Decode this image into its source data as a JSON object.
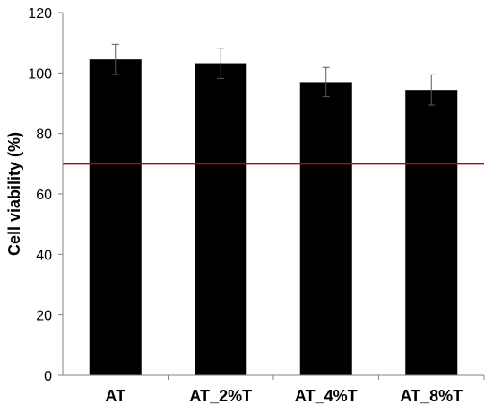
{
  "chart_data": {
    "type": "bar",
    "categories": [
      "AT",
      "AT_2%T",
      "AT_4%T",
      "AT_8%T"
    ],
    "values": [
      104.5,
      103.2,
      97.0,
      94.4
    ],
    "errors": [
      5.0,
      5.0,
      4.8,
      5.0
    ],
    "title": "",
    "xlabel": "",
    "ylabel": "Cell viability (%)",
    "ylim": [
      0,
      120
    ],
    "yticks": [
      "0",
      "20",
      "40",
      "60",
      "80",
      "100",
      "120"
    ],
    "reference_line": 70,
    "grid": false,
    "legend": "none",
    "colors": {
      "bar": "#000000",
      "error_bar": "#595959",
      "reference_line": "#c00000",
      "axis": "#808080"
    }
  }
}
